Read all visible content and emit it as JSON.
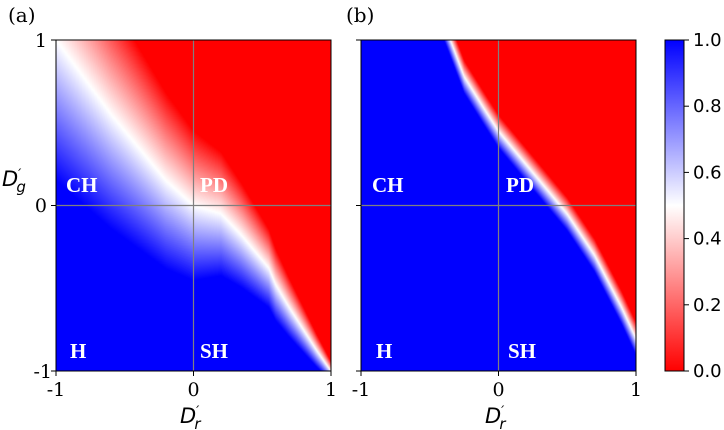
{
  "colors": {
    "low": "#ff0000",
    "mid": "#ffffff",
    "high": "#0000ff",
    "divider": "#808080"
  },
  "chart_data": [
    {
      "type": "heatmap",
      "panel_label": "(a)",
      "x": {
        "label": "D′r",
        "label_base": "D",
        "label_prime": "′",
        "label_sub": "r",
        "ticks": [
          "-1",
          "0",
          "1"
        ],
        "range": [
          -1,
          1
        ]
      },
      "y": {
        "label": "D′g",
        "label_base": "D",
        "label_prime": "′",
        "label_sub": "g",
        "ticks": [
          "-1",
          "0",
          "1"
        ],
        "range": [
          -1,
          1
        ]
      },
      "region_labels": [
        "CH",
        "PD",
        "H",
        "SH"
      ],
      "boundary": {
        "description": "value = 0.5 contour (y at each x)",
        "x": [
          -1.0,
          -0.6,
          -0.2,
          0.0,
          0.2,
          0.35,
          0.45,
          0.55,
          0.6,
          0.7,
          0.8,
          0.9,
          1.0
        ],
        "y": [
          1.0,
          0.55,
          0.15,
          0.0,
          -0.05,
          -0.18,
          -0.28,
          -0.38,
          -0.48,
          -0.62,
          -0.75,
          -0.88,
          -1.0
        ]
      },
      "width": {
        "left_x": -1.0,
        "left_value": 0.85,
        "right_x": 1.0,
        "right_value": 0.06
      }
    },
    {
      "type": "heatmap",
      "panel_label": "(b)",
      "x": {
        "label": "D′r",
        "label_base": "D",
        "label_prime": "′",
        "label_sub": "r",
        "ticks": [
          "-1",
          "0",
          "1"
        ],
        "range": [
          -1,
          1
        ]
      },
      "region_labels": [
        "CH",
        "PD",
        "H",
        "SH"
      ],
      "boundary": {
        "description": "value = 0.5 contour (y at each x)",
        "x": [
          -0.35,
          -0.25,
          -0.1,
          0.0,
          0.2,
          0.4,
          0.5,
          0.7,
          0.9,
          1.0
        ],
        "y": [
          1.0,
          0.78,
          0.58,
          0.45,
          0.25,
          0.05,
          -0.05,
          -0.3,
          -0.62,
          -0.8
        ],
        "extends_below": true
      },
      "width": {
        "left_x": -0.35,
        "left_value": 0.1,
        "right_x": 1.0,
        "right_value": 0.1
      }
    }
  ],
  "colorbar": {
    "ticks": [
      "0.0",
      "0.2",
      "0.4",
      "0.6",
      "0.8",
      "1.0"
    ],
    "range": [
      0,
      1
    ]
  }
}
